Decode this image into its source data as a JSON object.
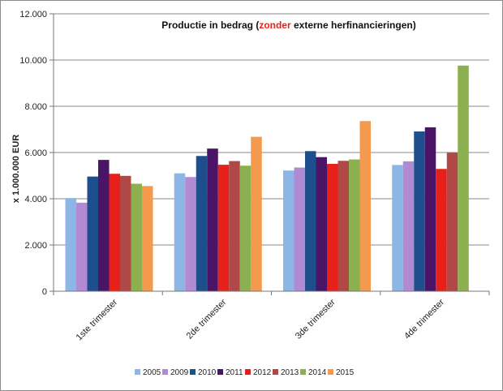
{
  "chart_data": {
    "type": "bar",
    "title_parts": [
      {
        "text": "Productie in bedrag (",
        "color": "#111111"
      },
      {
        "text": "zonder",
        "color": "#e8201a"
      },
      {
        "text": " externe herfinancieringen)",
        "color": "#111111"
      }
    ],
    "ylabel": "x 1.000.000  EUR",
    "xlabel": "",
    "ylim": [
      0,
      12000
    ],
    "yticks": [
      0,
      2000,
      4000,
      6000,
      8000,
      10000,
      12000
    ],
    "ytick_labels": [
      "0",
      "2.000",
      "4.000",
      "6.000",
      "8.000",
      "10.000",
      "12.000"
    ],
    "grid": true,
    "legend_position": "bottom",
    "categories": [
      "1ste trimester",
      "2de trimester",
      "3de trimester",
      "4de trimester"
    ],
    "series": [
      {
        "name": "2005",
        "color": "#8cb6e6",
        "values": [
          4030,
          5100,
          5220,
          5460
        ]
      },
      {
        "name": "2009",
        "color": "#b08ad2",
        "values": [
          3830,
          4940,
          5350,
          5620
        ]
      },
      {
        "name": "2010",
        "color": "#1f4e8c",
        "values": [
          4960,
          5850,
          6060,
          6910
        ]
      },
      {
        "name": "2011",
        "color": "#4a1566",
        "values": [
          5680,
          6170,
          5800,
          7090
        ]
      },
      {
        "name": "2012",
        "color": "#e8201a",
        "values": [
          5080,
          5470,
          5510,
          5290
        ]
      },
      {
        "name": "2013",
        "color": "#b04848",
        "values": [
          4990,
          5630,
          5640,
          5990
        ]
      },
      {
        "name": "2014",
        "color": "#8cb050",
        "values": [
          4650,
          5430,
          5700,
          9760
        ]
      },
      {
        "name": "2015",
        "color": "#f39a4e",
        "values": [
          4550,
          6680,
          7360,
          null
        ]
      }
    ]
  }
}
